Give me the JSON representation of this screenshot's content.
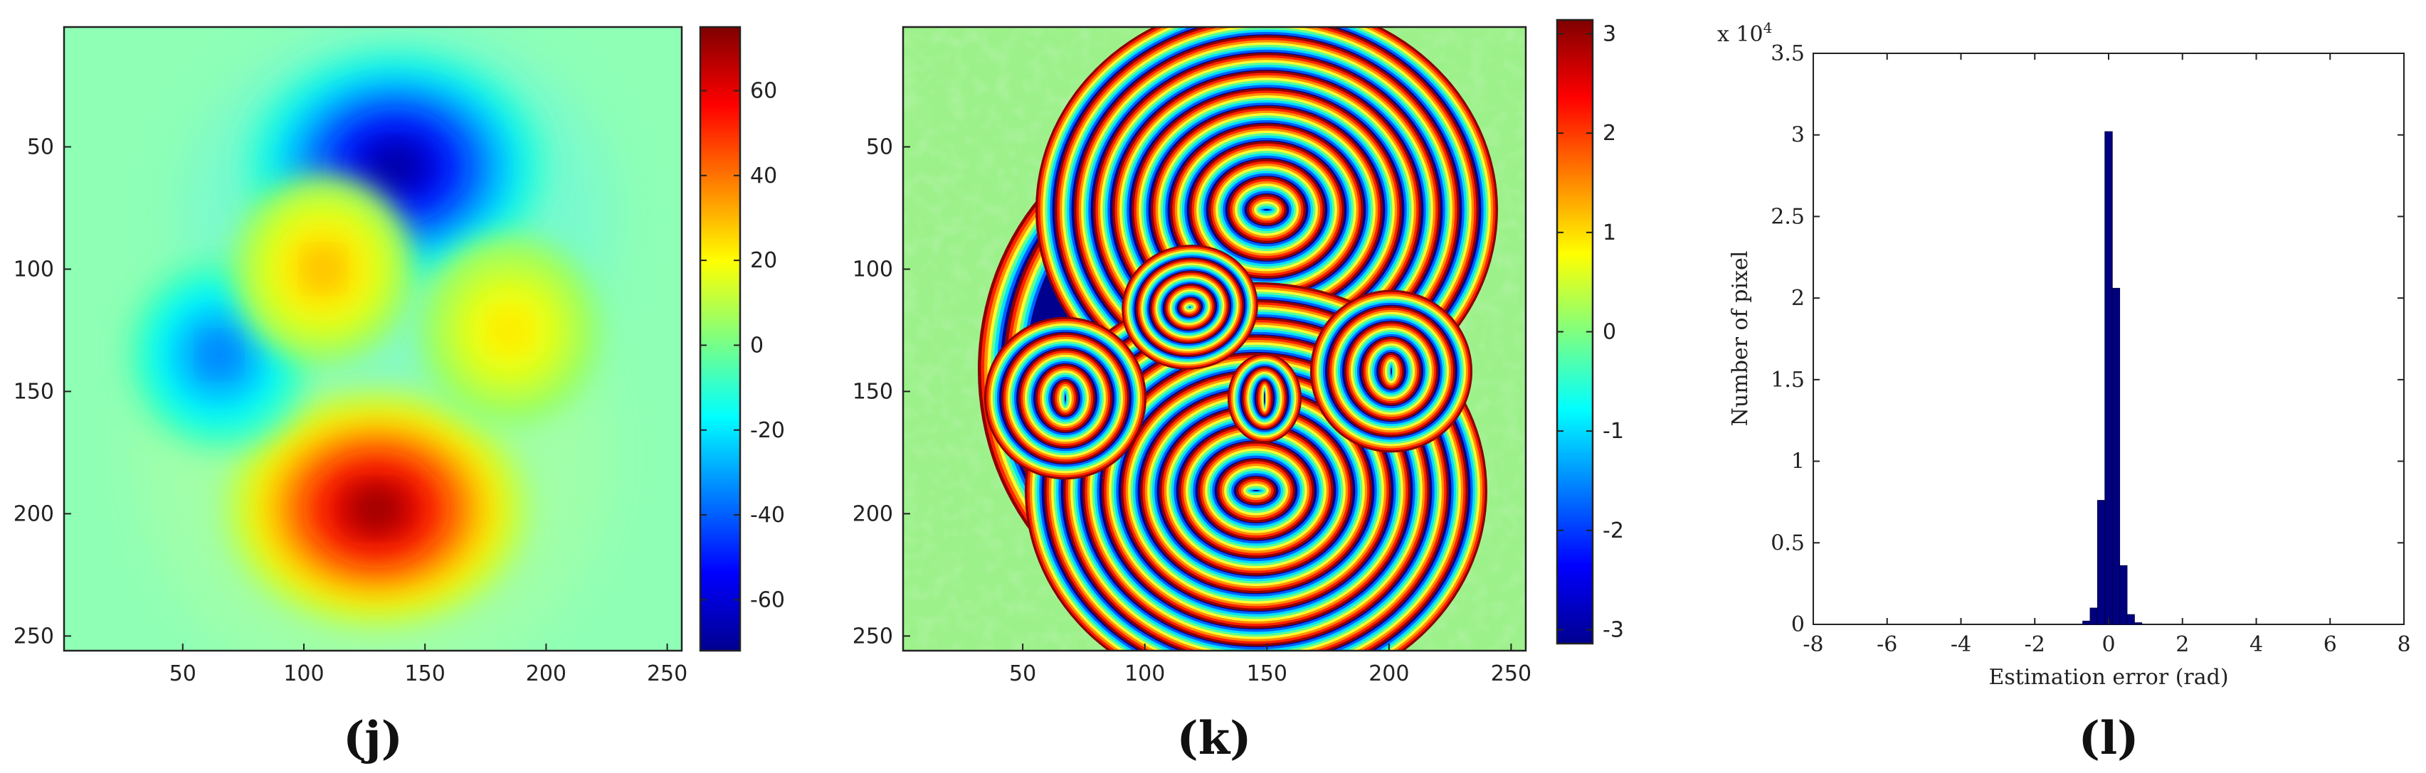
{
  "chart_data": [
    {
      "panel_label": "(j)",
      "type": "heatmap",
      "description_role": "phase map",
      "xlim": [
        1,
        256
      ],
      "ylim": [
        1,
        256
      ],
      "x_ticks": [
        50,
        100,
        150,
        200,
        250
      ],
      "y_ticks": [
        50,
        100,
        150,
        200,
        250
      ],
      "colorbar": {
        "min": -72,
        "max": 75,
        "ticks": [
          60,
          40,
          20,
          0,
          -20,
          -40,
          -60
        ],
        "colormap": "jet"
      },
      "blobs": [
        {
          "x": 138,
          "y": 58,
          "value": -70
        },
        {
          "x": 130,
          "y": 198,
          "value": 75
        },
        {
          "x": 65,
          "y": 135,
          "value": -38
        },
        {
          "x": 108,
          "y": 100,
          "value": 32
        },
        {
          "x": 185,
          "y": 125,
          "value": 25
        }
      ]
    },
    {
      "panel_label": "(k)",
      "type": "heatmap",
      "description_role": "wrapped phase map",
      "xlim": [
        1,
        256
      ],
      "ylim": [
        1,
        256
      ],
      "x_ticks": [
        50,
        100,
        150,
        200,
        250
      ],
      "y_ticks": [
        50,
        100,
        150,
        200,
        250
      ],
      "colorbar": {
        "min": -3.14,
        "max": 3.14,
        "ticks": [
          3,
          2,
          1,
          0,
          -1,
          -2,
          -3
        ],
        "colormap": "jet"
      }
    },
    {
      "panel_label": "(l)",
      "type": "bar",
      "xlabel": "Estimation error (rad)",
      "ylabel": "Number of pixel",
      "y_exponent": "x 10",
      "y_exponent_power": "4",
      "xlim": [
        -8,
        8
      ],
      "ylim": [
        0,
        3.5
      ],
      "x_ticks": [
        -8,
        -6,
        -4,
        -2,
        0,
        2,
        4,
        6,
        8
      ],
      "y_ticks": [
        0,
        0.5,
        1,
        1.5,
        2,
        2.5,
        3,
        3.5
      ],
      "bar_color": "#000080",
      "bins": [
        {
          "x": -0.6,
          "value": 0.02
        },
        {
          "x": -0.4,
          "value": 0.1
        },
        {
          "x": -0.2,
          "value": 0.76
        },
        {
          "x": 0.0,
          "value": 3.02
        },
        {
          "x": 0.2,
          "value": 2.06
        },
        {
          "x": 0.4,
          "value": 0.36
        },
        {
          "x": 0.6,
          "value": 0.06
        },
        {
          "x": 0.8,
          "value": 0.01
        }
      ]
    }
  ]
}
